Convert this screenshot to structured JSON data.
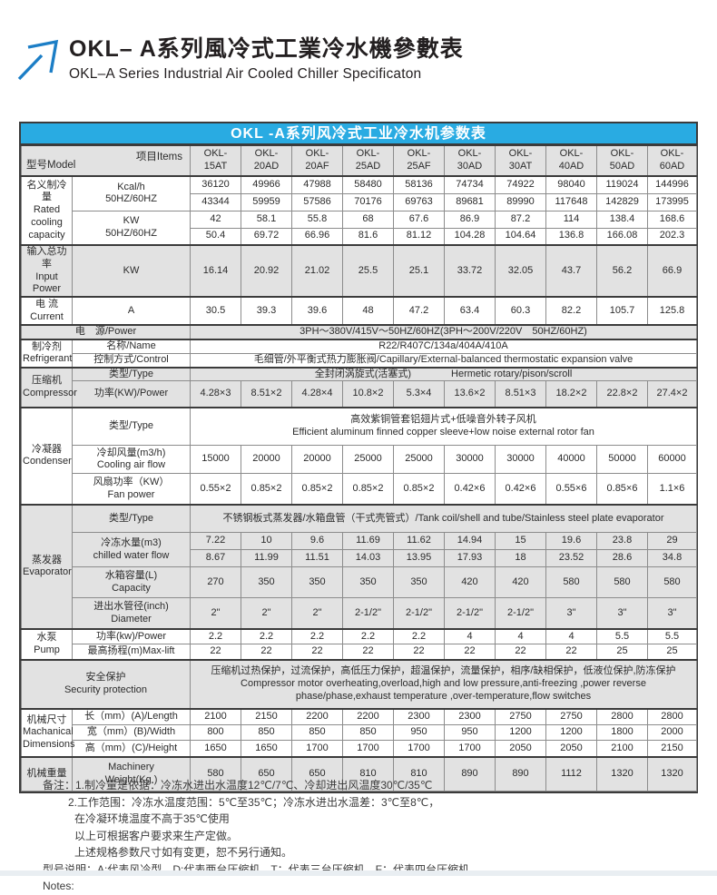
{
  "page": {
    "title_zh": "OKL– A系列風冷式工業冷水機參數表",
    "title_en": "OKL–A Series Industrial Air Cooled Chiller Specificaton",
    "table_title": "OKL -A系列风冷式工业冷水机参数表",
    "corner": {
      "model": "型号Model",
      "items": "项目Items"
    }
  },
  "colors": {
    "header_blue": "#29abe2",
    "section_gray": "#e2e2e2",
    "arrow_blue": "#1c7ec6",
    "border_dark": "#3b3b3b"
  },
  "table": {
    "models": [
      "OKL-\n15AT",
      "OKL-\n20AD",
      "OKL-\n20AF",
      "OKL-\n25AD",
      "OKL-\n25AF",
      "OKL-\n30AD",
      "OKL-\n30AT",
      "OKL-\n40AD",
      "OKL-\n50AD",
      "OKL-\n60AD"
    ],
    "rated": {
      "label": "名义制冷量\nRated\ncooling\ncapacity",
      "kcal_label": "Kcal/h\n50HZ/60HZ",
      "kw_label": "KW\n50HZ/60HZ",
      "kcal_50": [
        36120,
        49966,
        47988,
        58480,
        58136,
        74734,
        74922,
        98040,
        119024,
        144996
      ],
      "kcal_60": [
        43344,
        59959,
        57586,
        70176,
        69763,
        89681,
        89990,
        117648,
        142829,
        173995
      ],
      "kw_50": [
        42,
        58.1,
        55.8,
        68,
        67.6,
        86.9,
        87.2,
        114,
        138.4,
        168.6
      ],
      "kw_60": [
        50.4,
        69.72,
        66.96,
        81.6,
        81.12,
        104.28,
        104.64,
        136.8,
        166.08,
        202.3
      ]
    },
    "input_power": {
      "label": "输入总功率\nInput Power",
      "unit": "KW",
      "values": [
        16.14,
        20.92,
        21.02,
        25.5,
        25.1,
        33.72,
        32.05,
        43.7,
        56.2,
        66.9
      ]
    },
    "current": {
      "label": "电 流\nCurrent",
      "unit": "A",
      "values": [
        30.5,
        39.3,
        39.6,
        48,
        47.2,
        63.4,
        60.3,
        82.2,
        105.7,
        125.8
      ]
    },
    "power_source": {
      "label": "电　源/Power",
      "value": "3PH～380V/415V～50HZ/60HZ(3PH～200V/220V　50HZ/60HZ)"
    },
    "refrigerant": {
      "label": "制冷剂\nRefrigerant",
      "name_label": "名称/Name",
      "name_value": "R22/R407C/134a/404A/410A",
      "control_label": "控制方式/Control",
      "control_value": "毛细管/外平衡式热力膨胀阀/Capillary/External-balanced thermostatic expansion valve"
    },
    "compressor": {
      "label": "压缩机\nCompressor",
      "type_label": "类型/Type",
      "type_value": "全封闭涡旋式(活塞式)　　　　Hermetic rotary/pison/scroll",
      "power_label": "功率(KW)/Power",
      "power_values": [
        "4.28×3",
        "8.51×2",
        "4.28×4",
        "10.8×2",
        "5.3×4",
        "13.6×2",
        "8.51×3",
        "18.2×2",
        "22.8×2",
        "27.4×2"
      ]
    },
    "condenser": {
      "label": "冷凝器\nCondenser",
      "type_label": "类型/Type",
      "type_value": "高效紫铜管套铝翅片式+低噪音外转子风机\nEfficient aluminum finned copper sleeve+low noise external rotor fan",
      "airflow_label": "冷却风量(m3/h)\nCooling air flow",
      "airflow_values": [
        15000,
        20000,
        20000,
        25000,
        25000,
        30000,
        30000,
        40000,
        50000,
        60000
      ],
      "fan_label": "风扇功率（KW）\nFan power",
      "fan_values": [
        "0.55×2",
        "0.85×2",
        "0.85×2",
        "0.85×2",
        "0.85×2",
        "0.42×6",
        "0.42×6",
        "0.55×6",
        "0.85×6",
        "1.1×6"
      ]
    },
    "evaporator": {
      "label": "蒸发器\nEvaporator",
      "type_label": "类型/Type",
      "type_value": "不锈钢板式蒸发器/水箱盘管（干式壳管式）/Tank coil/shell and tube/Stainless steel plate evaporator",
      "water_label": "冷冻水量(m3)\nchilled water flow",
      "water_50": [
        7.22,
        10,
        9.6,
        11.69,
        11.62,
        14.94,
        15,
        19.6,
        23.8,
        29
      ],
      "water_60": [
        8.67,
        11.99,
        11.51,
        14.03,
        13.95,
        17.93,
        18,
        23.52,
        28.6,
        34.8
      ],
      "capacity_label": "水箱容量(L)\nCapacity",
      "capacity_values": [
        270,
        350,
        350,
        350,
        350,
        420,
        420,
        580,
        580,
        580
      ],
      "diameter_label": "进出水管径(inch)\nDiameter",
      "diameter_values": [
        "2\"",
        "2\"",
        "2\"",
        "2-1/2\"",
        "2-1/2\"",
        "2-1/2\"",
        "2-1/2\"",
        "3\"",
        "3\"",
        "3\""
      ]
    },
    "pump": {
      "label": "水泵\nPump",
      "power_label": "功率(kw)/Power",
      "power_values": [
        2.2,
        2.2,
        2.2,
        2.2,
        2.2,
        4,
        4,
        4,
        5.5,
        5.5
      ],
      "lift_label": "最高扬程(m)Max-lift",
      "lift_values": [
        22,
        22,
        22,
        22,
        22,
        22,
        22,
        22,
        25,
        25
      ]
    },
    "security": {
      "label": "安全保护\nSecurity protection",
      "value": "压缩机过热保护，过流保护，高低压力保护，超温保护，流量保护，相序/缺相保护，低液位保护,防冻保护\nCompressor motor overheating,overload,high and low pressure,anti-freezing ,power reverse\nphase/phase,exhaust temperature ,over-temperature,flow switches"
    },
    "dimensions": {
      "label": "机械尺寸\nMachanical\nDimensions",
      "length_label": "长（mm）(A)/Length",
      "length_values": [
        2100,
        2150,
        2200,
        2200,
        2300,
        2300,
        2750,
        2750,
        2800,
        2800
      ],
      "width_label": "宽（mm）(B)/Width",
      "width_values": [
        800,
        850,
        850,
        850,
        950,
        950,
        1200,
        1200,
        1800,
        2000
      ],
      "height_label": "高（mm）(C)/Height",
      "height_values": [
        1650,
        1650,
        1700,
        1700,
        1700,
        1700,
        2050,
        2050,
        2100,
        2150
      ]
    },
    "weight": {
      "label": "机械重量",
      "unit_label": "Machinery\nWeight(Kg )",
      "values": [
        580,
        650,
        650,
        810,
        810,
        890,
        890,
        1112,
        1320,
        1320
      ]
    }
  },
  "notes": {
    "lines": [
      "备注：1.制冷量是依据：冷冻水进出水温度12℃/7℃、冷却进出风温度30℃/35℃",
      "2.工作范围：冷冻水温度范围：5℃至35℃；冷冻水进出水温差：3℃至8℃，",
      "在冷凝环境温度不高于35℃使用",
      "以上可根据客户要求来生产定做。",
      "上述规格参数尺寸如有变更，恕不另行通知。",
      "型号说明：A:代表风冷型，D:代表两台压缩机，T：代表三台压缩机，F：代表四台压缩机。",
      "Notes:"
    ]
  }
}
